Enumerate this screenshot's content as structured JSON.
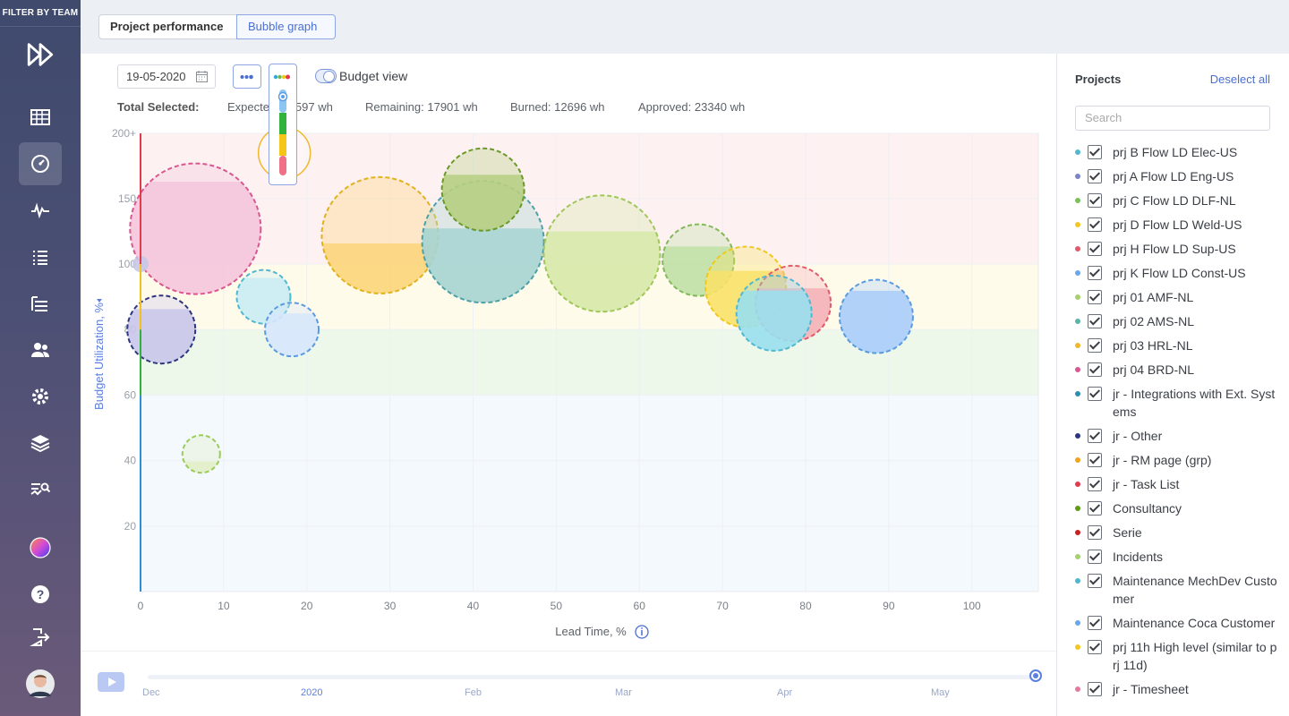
{
  "nav": {
    "filter_label": "FILTER BY TEAM"
  },
  "tabs": [
    {
      "label": "Project performance"
    },
    {
      "label": "Bubble graph"
    }
  ],
  "toolbar": {
    "date": "19-05-2020",
    "budget_view_label": "Budget view"
  },
  "stats": {
    "total_label": "Total Selected:",
    "expected": "Expected: 30597 wh",
    "remaining": "Remaining: 17901 wh",
    "burned": "Burned: 12696 wh",
    "approved": "Approved: 23340 wh"
  },
  "colors": {
    "accent": "#4a6fd1",
    "red_zone": "#fdf1f1",
    "yellow_zone": "#fffbeb",
    "green_zone": "#eef8ea",
    "blue_zone": "#f4f9fd"
  },
  "chart_data": {
    "type": "scatter",
    "xlabel": "Lead Time, %",
    "ylabel": "Budget Utilization, %",
    "xlim": [
      0,
      108
    ],
    "ylim": [
      0,
      200
    ],
    "x_ticks": [
      "0",
      "10",
      "20",
      "30",
      "40",
      "50",
      "60",
      "70",
      "80",
      "90",
      "100"
    ],
    "y_ticks": [
      "20",
      "40",
      "60",
      "80",
      "100",
      "150",
      "200+"
    ],
    "bands": [
      {
        "from": 0,
        "to": 60,
        "color": "#f4f9fd"
      },
      {
        "from": 60,
        "to": 80,
        "color": "#eef8ea"
      },
      {
        "from": 80,
        "to": 100,
        "color": "#fffbeb"
      },
      {
        "from": 100,
        "to": 200,
        "color": "#fdf1f1"
      }
    ],
    "bubbles": [
      {
        "x": 6.6,
        "y": 127,
        "r": 73,
        "fill": "#f4c6dc",
        "stroke": "#d9578f",
        "fillFrac": 0.86
      },
      {
        "x": 2.5,
        "y": 80,
        "r": 38,
        "fill": "#c9c5ea",
        "stroke": "#2c3580",
        "fillFrac": 0.8
      },
      {
        "x": 0,
        "y": 100,
        "r": 9,
        "fill": "#c6c8e6",
        "stroke": "none",
        "fillFrac": 1
      },
      {
        "x": 14.8,
        "y": 90,
        "r": 30,
        "fill": "#c9ecf3",
        "stroke": "#4fb8d0",
        "fillFrac": 0.85
      },
      {
        "x": 18.2,
        "y": 80,
        "r": 30,
        "fill": "#d6e6fb",
        "stroke": "#5a9be0",
        "fillFrac": 0.8
      },
      {
        "x": 7.3,
        "y": 42,
        "r": 21,
        "fill": "#e0efc6",
        "stroke": "#9bcb5a",
        "fillFrac": 0.3
      },
      {
        "x": 17.3,
        "y": 185,
        "r": 29,
        "fill": "#ffffff",
        "stroke": "#f0b82c",
        "fillFrac": 0,
        "solid": true
      },
      {
        "x": 28.8,
        "y": 122,
        "r": 65,
        "fill": "#fbd57a",
        "stroke": "#e2b21e",
        "fillFrac": 0.43
      },
      {
        "x": 41.2,
        "y": 117,
        "r": 68,
        "fill": "#a6d4d2",
        "stroke": "#4e9fa7",
        "fillFrac": 0.61
      },
      {
        "x": 41.2,
        "y": 157,
        "r": 46,
        "fill": "#b6cf83",
        "stroke": "#6a9a27",
        "fillFrac": 0.68
      },
      {
        "x": 55.5,
        "y": 108,
        "r": 65,
        "fill": "#d7e9a9",
        "stroke": "#9fc75a",
        "fillFrac": 0.69
      },
      {
        "x": 67.1,
        "y": 103,
        "r": 40,
        "fill": "#bfe0a6",
        "stroke": "#84b85a",
        "fillFrac": 0.69
      },
      {
        "x": 72.8,
        "y": 93,
        "r": 45,
        "fill": "#f9e26a",
        "stroke": "#f1c71c",
        "fillFrac": 0.7
      },
      {
        "x": 78.5,
        "y": 88,
        "r": 42,
        "fill": "#f3b1b7",
        "stroke": "#e05a6b",
        "fillFrac": 0.7
      },
      {
        "x": 76.2,
        "y": 85,
        "r": 42,
        "fill": "#99dfee",
        "stroke": "#4fb8d0",
        "fillFrac": 0.8
      },
      {
        "x": 88.5,
        "y": 84,
        "r": 41,
        "fill": "#a9cdfa",
        "stroke": "#5a9be0",
        "fillFrac": 0.85
      }
    ]
  },
  "timeline": {
    "labels": [
      "Dec",
      "2020",
      "Feb",
      "Mar",
      "Apr",
      "May"
    ]
  },
  "sidebar": {
    "title": "Projects",
    "deselect_label": "Deselect all",
    "search_placeholder": "Search",
    "projects": [
      {
        "name": "prj B Flow LD Elec-US",
        "color": "#4fb8d0"
      },
      {
        "name": "prj A Flow LD Eng-US",
        "color": "#7b83c9"
      },
      {
        "name": "prj C Flow LD DLF-NL",
        "color": "#79c15a"
      },
      {
        "name": "prj D Flow LD Weld-US",
        "color": "#f3c623"
      },
      {
        "name": "prj H Flow LD Sup-US",
        "color": "#e05a6b"
      },
      {
        "name": "prj K Flow LD Const-US",
        "color": "#6aa7e8"
      },
      {
        "name": "prj 01 AMF-NL",
        "color": "#a5d16a"
      },
      {
        "name": "prj 02 AMS-NL",
        "color": "#5db3a8"
      },
      {
        "name": "prj 03 HRL-NL",
        "color": "#f0b82c"
      },
      {
        "name": "prj 04 BRD-NL",
        "color": "#d9578f"
      },
      {
        "name": "jr - Integrations with Ext. Systems",
        "color": "#2d8fb0"
      },
      {
        "name": "jr - Other",
        "color": "#2c3580"
      },
      {
        "name": "jr - RM page (grp)",
        "color": "#f5a21b"
      },
      {
        "name": "jr - Task List",
        "color": "#e23b4e"
      },
      {
        "name": "Consultancy",
        "color": "#5e9a12"
      },
      {
        "name": "Serie",
        "color": "#cc1f1f"
      },
      {
        "name": "Incidents",
        "color": "#a5d16a"
      },
      {
        "name": "Maintenance MechDev Customer",
        "color": "#4fb8d0"
      },
      {
        "name": "Maintenance Coca Customer",
        "color": "#6aa7e8"
      },
      {
        "name": "prj 11h High level (similar to prj 11d)",
        "color": "#f3c623"
      },
      {
        "name": "jr - Timesheet",
        "color": "#e77a9c"
      }
    ]
  }
}
